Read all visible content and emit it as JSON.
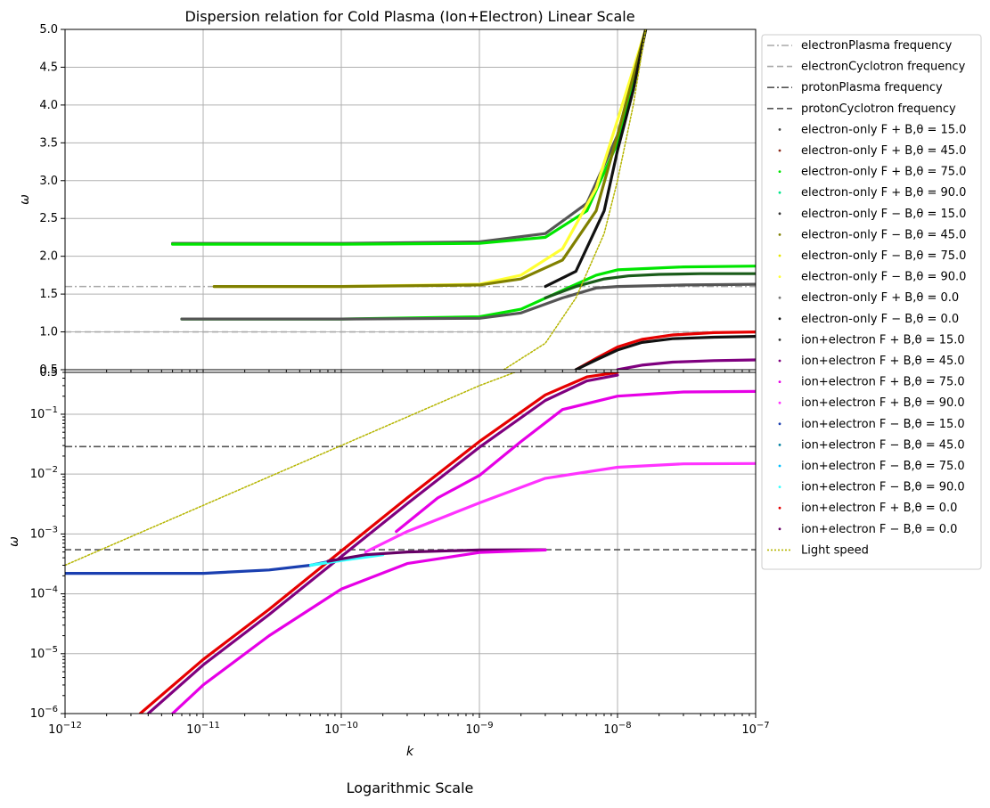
{
  "figure": {
    "suptitle": "Dispersion relation for Cold Plasma (Ion+Electron) Linear Scale",
    "bottom_caption": "Logarithmic Scale"
  },
  "legend": {
    "placement": "outside-right",
    "entries": [
      {
        "label": "electronPlasma frequency",
        "color": "#a8a8a8",
        "style": "dashdot"
      },
      {
        "label": "electronCyclotron frequency",
        "color": "#a8a8a8",
        "style": "dashed"
      },
      {
        "label": "protonPlasma frequency",
        "color": "#555555",
        "style": "dashdot"
      },
      {
        "label": "protonCyclotron frequency",
        "color": "#555555",
        "style": "dashed"
      },
      {
        "label": "electron-only F + B,θ = 15.0",
        "color": "#444444",
        "style": "point"
      },
      {
        "label": "electron-only F + B,θ = 45.0",
        "color": "#8b2a1a",
        "style": "point"
      },
      {
        "label": "electron-only F + B,θ = 75.0",
        "color": "#00e600",
        "style": "point"
      },
      {
        "label": "electron-only F + B,θ = 90.0",
        "color": "#00e68a",
        "style": "point"
      },
      {
        "label": "electron-only F − B,θ = 15.0",
        "color": "#333333",
        "style": "point"
      },
      {
        "label": "electron-only F − B,θ = 45.0",
        "color": "#808000",
        "style": "point"
      },
      {
        "label": "electron-only F − B,θ = 75.0",
        "color": "#e6e600",
        "style": "point"
      },
      {
        "label": "electron-only F − B,θ = 90.0",
        "color": "#ffff33",
        "style": "point"
      },
      {
        "label": "electron-only F + B,θ = 0.0",
        "color": "#777777",
        "style": "point"
      },
      {
        "label": "electron-only F − B,θ = 0.0",
        "color": "#111111",
        "style": "point"
      },
      {
        "label": "ion+electron F + B,θ = 15.0",
        "color": "#333333",
        "style": "point"
      },
      {
        "label": "ion+electron F + B,θ = 45.0",
        "color": "#7f007f",
        "style": "point"
      },
      {
        "label": "ion+electron F + B,θ = 75.0",
        "color": "#e600e6",
        "style": "point"
      },
      {
        "label": "ion+electron F + B,θ = 90.0",
        "color": "#ff33ff",
        "style": "point"
      },
      {
        "label": "ion+electron F − B,θ = 15.0",
        "color": "#1a3fb0",
        "style": "point"
      },
      {
        "label": "ion+electron F − B,θ = 45.0",
        "color": "#0080a0",
        "style": "point"
      },
      {
        "label": "ion+electron F − B,θ = 75.0",
        "color": "#00bfff",
        "style": "point"
      },
      {
        "label": "ion+electron F − B,θ = 90.0",
        "color": "#33ffff",
        "style": "point"
      },
      {
        "label": "ion+electron F + B,θ = 0.0",
        "color": "#e60000",
        "style": "point"
      },
      {
        "label": "ion+electron F − B,θ = 0.0",
        "color": "#660066",
        "style": "point"
      },
      {
        "label": "Light speed",
        "color": "#b5b500",
        "style": "dotted"
      }
    ]
  },
  "chart_data": [
    {
      "type": "line",
      "title": "",
      "xlabel": "",
      "ylabel": "ω",
      "xscale": "log",
      "yscale": "linear",
      "xlim": [
        1e-12,
        1e-07
      ],
      "ylim": [
        0.5,
        5.0
      ],
      "yticks": [
        "0.5",
        "1.0",
        "1.5",
        "2.0",
        "2.5",
        "3.0",
        "3.5",
        "4.0",
        "4.5",
        "5.0"
      ],
      "grid": true,
      "reference_lines": [
        {
          "name": "electronPlasma frequency",
          "y": 1.6,
          "style": "dashdot",
          "color": "#a8a8a8"
        },
        {
          "name": "electronCyclotron frequency",
          "y": 1.0,
          "style": "dashed",
          "color": "#a8a8a8"
        }
      ],
      "series": [
        {
          "name": "electron-only F + B,θ = 15.0",
          "color": "#555555",
          "x": [
            6e-12,
            1e-11,
            1e-10,
            1e-09,
            3e-09,
            6e-09,
            1e-08,
            1.6e-08
          ],
          "y": [
            2.17,
            2.17,
            2.17,
            2.19,
            2.3,
            2.7,
            3.6,
            5.0
          ]
        },
        {
          "name": "electron-only F + B,θ = 75.0",
          "color": "#00e600",
          "x": [
            6e-12,
            1e-11,
            1e-10,
            1e-09,
            3e-09,
            6e-09,
            1e-08,
            1.6e-08
          ],
          "y": [
            2.16,
            2.16,
            2.16,
            2.17,
            2.25,
            2.6,
            3.5,
            5.0
          ]
        },
        {
          "name": "electron-only F − B,θ = 90.0",
          "color": "#ffff33",
          "x": [
            1.2e-11,
            1e-10,
            1e-09,
            2e-09,
            4e-09,
            7e-09,
            1e-08,
            1.6e-08
          ],
          "y": [
            1.6,
            1.6,
            1.63,
            1.75,
            2.1,
            2.9,
            3.8,
            5.0
          ]
        },
        {
          "name": "electron-only F − B,θ = 45.0",
          "color": "#808000",
          "x": [
            1.2e-11,
            1e-10,
            1e-09,
            2e-09,
            4e-09,
            7e-09,
            1e-08,
            1.6e-08
          ],
          "y": [
            1.6,
            1.6,
            1.62,
            1.7,
            1.95,
            2.6,
            3.6,
            5.0
          ]
        },
        {
          "name": "electron-only F − B,θ = 0.0",
          "color": "#111111",
          "x": [
            3e-09,
            5e-09,
            8e-09,
            1e-08,
            1.3e-08,
            1.6e-08
          ],
          "y": [
            1.6,
            1.8,
            2.6,
            3.4,
            4.2,
            5.0
          ]
        },
        {
          "name": "electron-only F + B,θ = 75.0 (lower)",
          "color": "#00e600",
          "x": [
            7e-12,
            1e-11,
            1e-10,
            1e-09,
            2e-09,
            4e-09,
            7e-09,
            1e-08,
            3e-08,
            1e-07
          ],
          "y": [
            1.17,
            1.17,
            1.17,
            1.2,
            1.3,
            1.55,
            1.75,
            1.82,
            1.86,
            1.87
          ]
        },
        {
          "name": "electron-only F + B,θ = 15.0 (lower)",
          "color": "#555555",
          "x": [
            7e-12,
            1e-11,
            1e-10,
            1e-09,
            2e-09,
            4e-09,
            7e-09,
            1e-08,
            3e-08,
            1e-07
          ],
          "y": [
            1.17,
            1.17,
            1.17,
            1.18,
            1.25,
            1.45,
            1.58,
            1.6,
            1.62,
            1.63
          ]
        },
        {
          "name": "electron-only F − B,θ = 15.0",
          "color": "#1a5c1a",
          "x": [
            3e-09,
            5e-09,
            8e-09,
            1.2e-08,
            2e-08,
            4e-08,
            1e-07
          ],
          "y": [
            1.45,
            1.6,
            1.7,
            1.74,
            1.76,
            1.77,
            1.77
          ]
        },
        {
          "name": "ion+electron F + B,θ = 0.0",
          "color": "#e60000",
          "x": [
            5e-09,
            7e-09,
            1e-08,
            1.5e-08,
            2.5e-08,
            5e-08,
            1e-07
          ],
          "y": [
            0.5,
            0.65,
            0.8,
            0.9,
            0.96,
            0.99,
            1.0
          ]
        },
        {
          "name": "ion+electron F + B,θ = 15.0",
          "color": "#111111",
          "x": [
            5e-09,
            7e-09,
            1e-08,
            1.5e-08,
            2.5e-08,
            5e-08,
            1e-07
          ],
          "y": [
            0.5,
            0.63,
            0.76,
            0.86,
            0.91,
            0.93,
            0.94
          ]
        },
        {
          "name": "ion+electron F + B,θ = 45.0",
          "color": "#7f007f",
          "x": [
            1e-08,
            1.5e-08,
            2.5e-08,
            5e-08,
            1e-07
          ],
          "y": [
            0.5,
            0.56,
            0.6,
            0.62,
            0.63
          ]
        },
        {
          "name": "Light speed",
          "color": "#b5b500",
          "style": "dotted",
          "x": [
            1.5e-09,
            3e-09,
            5e-09,
            8e-09,
            1e-08,
            1.3e-08,
            1.6e-08
          ],
          "y": [
            0.5,
            0.85,
            1.45,
            2.3,
            3.0,
            4.0,
            5.0
          ]
        }
      ]
    },
    {
      "type": "line",
      "title": "",
      "xlabel": "k",
      "ylabel": "ω",
      "xscale": "log",
      "yscale": "log",
      "xlim": [
        1e-12,
        1e-07
      ],
      "ylim": [
        1e-06,
        0.5
      ],
      "xticks": [
        1e-12,
        1e-11,
        1e-10,
        1e-09,
        1e-08,
        1e-07
      ],
      "yticks_major": [
        1e-06,
        1e-05,
        0.0001,
        0.001,
        0.01,
        0.1
      ],
      "top_tick_label": "0.5",
      "grid": true,
      "reference_lines": [
        {
          "name": "protonPlasma frequency",
          "y": 0.0288,
          "style": "dashdot",
          "color": "#555555"
        },
        {
          "name": "protonCyclotron frequency",
          "y": 0.000545,
          "style": "dashed",
          "color": "#555555"
        }
      ],
      "series": [
        {
          "name": "Light speed",
          "color": "#b5b500",
          "style": "dotted",
          "x": [
            1e-12,
            1e-11,
            1e-10,
            1e-09,
            1.8e-09
          ],
          "y": [
            0.0003,
            0.003,
            0.03,
            0.3,
            0.5
          ]
        },
        {
          "name": "ion+electron F + B,θ = 0.0",
          "color": "#e60000",
          "x": [
            3.5e-12,
            1e-11,
            3e-11,
            1e-10,
            3e-10,
            1e-09,
            3e-09,
            6e-09,
            1e-08
          ],
          "y": [
            1e-06,
            8e-06,
            5.5e-05,
            0.00052,
            0.004,
            0.035,
            0.21,
            0.42,
            0.5
          ]
        },
        {
          "name": "ion+electron F + B,θ = 45.0",
          "color": "#7f007f",
          "x": [
            4e-12,
            1e-11,
            3e-11,
            1e-10,
            3e-10,
            1e-09,
            3e-09,
            6e-09,
            1e-08
          ],
          "y": [
            1e-06,
            6.5e-06,
            4.5e-05,
            0.00042,
            0.0032,
            0.028,
            0.17,
            0.36,
            0.45
          ]
        },
        {
          "name": "ion+electron F + B,θ = 75.0",
          "color": "#e600e6",
          "x": [
            2.5e-10,
            5e-10,
            1e-09,
            2e-09,
            4e-09,
            1e-08,
            3e-08,
            1e-07
          ],
          "y": [
            0.0011,
            0.004,
            0.0095,
            0.035,
            0.12,
            0.2,
            0.235,
            0.24
          ]
        },
        {
          "name": "ion+electron F + B,θ = 90.0",
          "color": "#ff33ff",
          "x": [
            1.5e-10,
            3e-10,
            1e-09,
            3e-09,
            1e-08,
            3e-08,
            1e-07
          ],
          "y": [
            0.0005,
            0.0011,
            0.0033,
            0.0085,
            0.013,
            0.0148,
            0.015
          ]
        },
        {
          "name": "ion+electron F − B,θ = 15.0",
          "color": "#1a3fb0",
          "x": [
            1e-12,
            1e-11,
            3e-11,
            6e-11,
            1e-10
          ],
          "y": [
            0.00022,
            0.00022,
            0.00025,
            0.0003,
            0.00038
          ]
        },
        {
          "name": "ion+electron F − B,θ = 90.0",
          "color": "#33ffff",
          "x": [
            6e-11,
            1e-10,
            2e-10
          ],
          "y": [
            0.0003,
            0.00036,
            0.00045
          ]
        },
        {
          "name": "ion+electron F − B,θ = 0.0",
          "color": "#660066",
          "x": [
            8e-11,
            1.5e-10,
            3e-10,
            1e-09,
            3e-09
          ],
          "y": [
            0.00035,
            0.00045,
            0.0005,
            0.00054,
            0.000545
          ]
        },
        {
          "name": "ion+electron F − B,θ = 45.0",
          "color": "#e600e6",
          "x": [
            6e-12,
            1e-11,
            3e-11,
            1e-10,
            3e-10,
            1e-09,
            3e-09
          ],
          "y": [
            1e-06,
            3e-06,
            2e-05,
            0.00012,
            0.00032,
            0.00049,
            0.00054
          ]
        }
      ]
    }
  ]
}
